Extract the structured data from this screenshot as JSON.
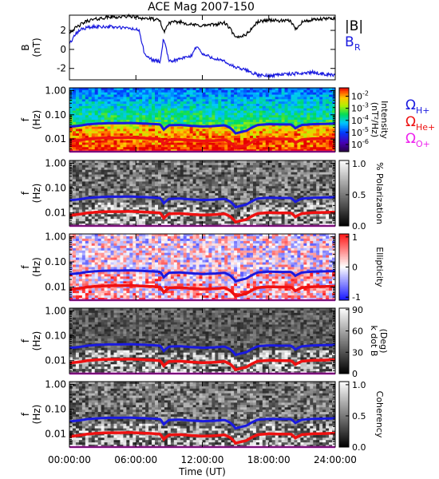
{
  "title": "ACE Mag 2007-150",
  "colors": {
    "B_total": "#000000",
    "B_R": "#1a1adf",
    "omega_H": "#1a1adf",
    "omega_He": "#ee1111",
    "omega_O": "#ee22ee"
  },
  "chart_data": [
    {
      "type": "line",
      "title": "ACE Mag 2007-150",
      "ylabel_line1": "B",
      "ylabel_line2": "(nT)",
      "ylim": [
        -3.2,
        3.6
      ],
      "yticks": [
        "2",
        "0",
        "-2"
      ],
      "ytick_values": [
        2,
        0,
        -2
      ],
      "xlim_hours": [
        0,
        24
      ],
      "legend": {
        "b_total": "|B|",
        "b_r": "B",
        "b_r_sub": "R"
      },
      "series": [
        {
          "name": "|B|",
          "color": "#000000",
          "x_hours": [
            0,
            1,
            1.6,
            2.5,
            3.5,
            4.5,
            5.5,
            6.5,
            7.5,
            8.2,
            8.5,
            9,
            10,
            11,
            12,
            13,
            14,
            14.5,
            15,
            16,
            17,
            18,
            19,
            20,
            20.4,
            21,
            22,
            23,
            24
          ],
          "values": [
            1.8,
            2.6,
            3.0,
            3.2,
            3.4,
            3.4,
            3.5,
            3.3,
            3.2,
            3.0,
            1.8,
            2.8,
            2.9,
            2.6,
            2.5,
            2.6,
            2.8,
            2.2,
            1.2,
            1.6,
            2.9,
            3.1,
            3.0,
            3.0,
            2.1,
            2.9,
            3.1,
            3.2,
            3.3
          ]
        },
        {
          "name": "B_R",
          "color": "#1a1adf",
          "x_hours": [
            0,
            0.5,
            1,
            1.6,
            2.5,
            3.5,
            4.5,
            5.5,
            6.3,
            6.8,
            7.5,
            8.2,
            8.5,
            9,
            10,
            11,
            11.5,
            12,
            13,
            14,
            15,
            16,
            17,
            18,
            19,
            20,
            21,
            22,
            23,
            24
          ],
          "values": [
            0.6,
            1.5,
            2.1,
            2.3,
            2.4,
            2.4,
            2.3,
            2.2,
            2.0,
            -0.6,
            -1.1,
            -1.3,
            1.2,
            -1.3,
            -1.0,
            -0.7,
            0.4,
            -0.5,
            -0.9,
            -1.3,
            -1.9,
            -2.2,
            -2.7,
            -2.8,
            -2.6,
            -2.6,
            -2.5,
            -2.4,
            -2.6,
            -2.7
          ]
        }
      ]
    },
    {
      "type": "heatmap",
      "ylabel_line1": "f",
      "ylabel_line2": "(Hz)",
      "yscale": "log",
      "ylim": [
        0.003,
        1.3
      ],
      "yticks": [
        "1.00",
        "0.10",
        "0.01"
      ],
      "ytick_values": [
        1.0,
        0.1,
        0.01
      ],
      "colorscale": "rainbow",
      "colorbar_title_line1": "Intensity",
      "colorbar_title_line2": "(nT²/Hz)",
      "colorbar_ticks": [
        {
          "base": "10",
          "exp": "-2"
        },
        {
          "base": "10",
          "exp": "-3"
        },
        {
          "base": "10",
          "exp": "-4"
        },
        {
          "base": "10",
          "exp": "-5"
        },
        {
          "base": "10",
          "exp": "-6"
        }
      ],
      "colorbar_tick_log_values": [
        -2,
        -3,
        -4,
        -5,
        -6
      ],
      "colorbar_range_log": [
        -6.6,
        -1.3
      ],
      "legend": {
        "entries": [
          {
            "symbol": "Ω",
            "sub": "H+",
            "color": "#1a1adf"
          },
          {
            "symbol": "Ω",
            "sub": "He+",
            "color": "#ee1111"
          },
          {
            "symbol": "Ω",
            "sub": "O+",
            "color": "#ee22ee"
          }
        ]
      }
    },
    {
      "type": "heatmap",
      "ylabel_line1": "f",
      "ylabel_line2": "(Hz)",
      "yscale": "log",
      "ylim": [
        0.003,
        1.3
      ],
      "yticks": [
        "1.00",
        "0.10",
        "0.01"
      ],
      "ytick_values": [
        1.0,
        0.1,
        0.01
      ],
      "colorscale": "gray",
      "colorbar_title": "% Polarization",
      "colorbar_ticks": [
        "1.0",
        "0.5",
        "0.0"
      ],
      "colorbar_tick_values": [
        1.0,
        0.5,
        0.0
      ],
      "colorbar_range": [
        0,
        1.05
      ]
    },
    {
      "type": "heatmap",
      "ylabel_line1": "f",
      "ylabel_line2": "(Hz)",
      "yscale": "log",
      "ylim": [
        0.003,
        1.3
      ],
      "yticks": [
        "1.00",
        "0.10",
        "0.01"
      ],
      "ytick_values": [
        1.0,
        0.1,
        0.01
      ],
      "colorscale": "bwr",
      "colorbar_title": "Ellipticity",
      "colorbar_ticks": [
        "1",
        "0",
        "-1"
      ],
      "colorbar_tick_values": [
        1,
        0,
        -1
      ],
      "colorbar_range": [
        -1.1,
        1.1
      ]
    },
    {
      "type": "heatmap",
      "ylabel_line1": "f",
      "ylabel_line2": "(Hz)",
      "yscale": "log",
      "ylim": [
        0.003,
        1.3
      ],
      "yticks": [
        "1.00",
        "0.10",
        "0.01"
      ],
      "ytick_values": [
        1.0,
        0.1,
        0.01
      ],
      "colorscale": "gray",
      "colorbar_title_line1": "k dot B",
      "colorbar_title_line2": "(Deg)",
      "colorbar_ticks": [
        "90",
        "60",
        "30",
        "0"
      ],
      "colorbar_tick_values": [
        90,
        60,
        30,
        0
      ],
      "colorbar_range": [
        0,
        92
      ]
    },
    {
      "type": "heatmap",
      "ylabel_line1": "f",
      "ylabel_line2": "(Hz)",
      "yscale": "log",
      "ylim": [
        0.003,
        1.3
      ],
      "yticks": [
        "1.00",
        "0.10",
        "0.01"
      ],
      "ytick_values": [
        1.0,
        0.1,
        0.01
      ],
      "colorscale": "gray",
      "colorbar_title": "Coherency",
      "colorbar_ticks": [
        "1.0",
        "0.5",
        "0.0"
      ],
      "colorbar_tick_values": [
        1.0,
        0.5,
        0.0
      ],
      "colorbar_range": [
        0,
        1.05
      ]
    }
  ],
  "gyrofrequencies": {
    "x_hours": [
      0,
      1,
      1.6,
      2.5,
      3.5,
      4.5,
      5.5,
      6.5,
      7.5,
      8.2,
      8.5,
      9,
      10,
      11,
      12,
      13,
      14,
      14.5,
      15,
      16,
      17,
      18,
      19,
      20,
      20.4,
      21,
      22,
      23,
      24
    ],
    "omega_H_hz": [
      0.032,
      0.036,
      0.04,
      0.043,
      0.045,
      0.045,
      0.046,
      0.044,
      0.042,
      0.04,
      0.024,
      0.037,
      0.038,
      0.035,
      0.033,
      0.034,
      0.037,
      0.029,
      0.017,
      0.022,
      0.038,
      0.041,
      0.04,
      0.04,
      0.028,
      0.038,
      0.041,
      0.042,
      0.043
    ],
    "omega_He_hz": [
      0.008,
      0.009,
      0.01,
      0.0108,
      0.0113,
      0.0113,
      0.0115,
      0.011,
      0.0105,
      0.01,
      0.006,
      0.0093,
      0.0095,
      0.0088,
      0.0083,
      0.0085,
      0.0093,
      0.0073,
      0.0043,
      0.0055,
      0.0095,
      0.0103,
      0.01,
      0.01,
      0.007,
      0.0095,
      0.0103,
      0.0105,
      0.0108
    ],
    "omega_O_hz": [
      0.002,
      0.0022,
      0.0025,
      0.0027,
      0.0028,
      0.0028,
      0.0029,
      0.0028,
      0.0026,
      0.0025,
      0.0015,
      0.0023,
      0.0024,
      0.0022,
      0.0021,
      0.0021,
      0.0023,
      0.0018,
      0.0011,
      0.0014,
      0.0024,
      0.0026,
      0.0025,
      0.0025,
      0.0018,
      0.0024,
      0.0026,
      0.0026,
      0.0027
    ]
  },
  "x_axis": {
    "title": "Time (UT)",
    "tick_labels": [
      "00:00:00",
      "06:00:00",
      "12:00:00",
      "18:00:00",
      "24:00:00"
    ],
    "tick_hours": [
      0,
      6,
      12,
      18,
      24
    ]
  }
}
